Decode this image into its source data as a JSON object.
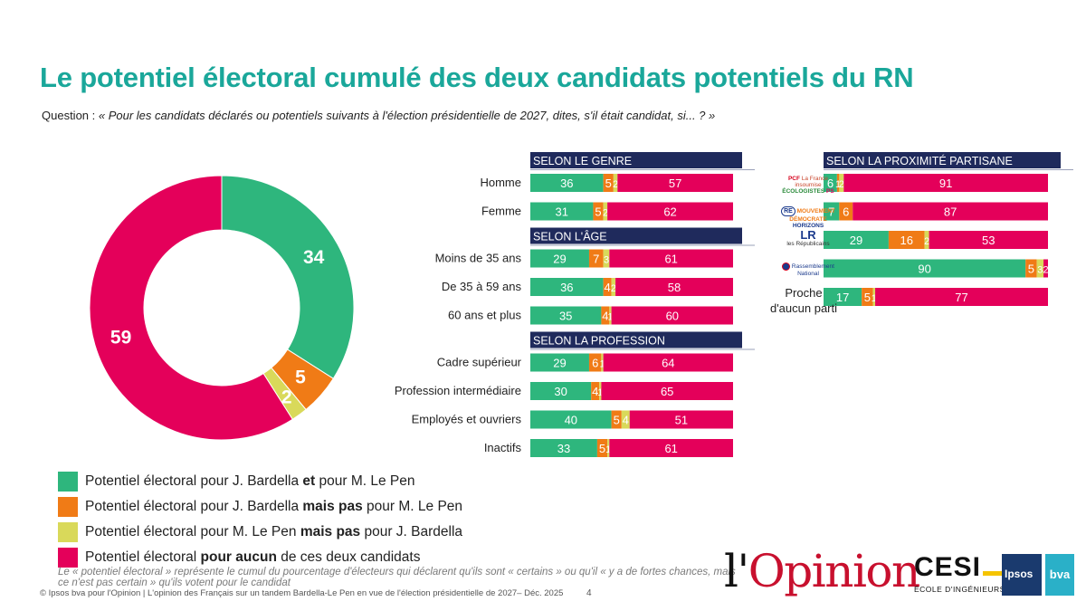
{
  "title": "Le potentiel électoral cumulé des deux candidats potentiels du RN",
  "question": {
    "prefix": "Question : ",
    "text": "« Pour les candidats déclarés ou potentiels suivants à l'élection présidentielle de 2027, dites, s'il était candidat, si... ? »"
  },
  "colors": {
    "green": "#2eb67d",
    "orange": "#f07b16",
    "yellow": "#d9d95a",
    "red": "#e4005a",
    "navy": "#1f2a5c",
    "teal": "#1aa79a"
  },
  "chart_data": [
    {
      "type": "pie",
      "title": "Ensemble",
      "categories": [
        "Potentiel électoral pour J. Bardella et pour M. Le Pen",
        "Potentiel électoral pour J. Bardella mais pas pour M. Le Pen",
        "Potentiel électoral pour M. Le Pen mais pas pour J. Bardella",
        "Potentiel électoral pour aucun de ces deux candidats"
      ],
      "values": [
        34,
        5,
        2,
        59
      ],
      "labels": [
        "34",
        "5",
        "2",
        "59"
      ]
    },
    {
      "type": "bar",
      "stacked": true,
      "orientation": "horizontal",
      "groups": [
        {
          "header": "SELON LE GENRE",
          "rows": [
            {
              "label": "Homme",
              "values": [
                36,
                5,
                2,
                57
              ],
              "labels": [
                "36",
                "5",
                "2",
                "57"
              ]
            },
            {
              "label": "Femme",
              "values": [
                31,
                5,
                2,
                62
              ],
              "labels": [
                "31",
                "5",
                "2",
                "62"
              ]
            }
          ]
        },
        {
          "header": "SELON L'ÂGE",
          "rows": [
            {
              "label": "Moins de 35 ans",
              "values": [
                29,
                7,
                3,
                61
              ],
              "labels": [
                "29",
                "7",
                "3",
                "61"
              ]
            },
            {
              "label": "De 35 à 59 ans",
              "values": [
                36,
                4,
                2,
                58
              ],
              "labels": [
                "36",
                "4",
                "2",
                "58"
              ]
            },
            {
              "label": "60 ans et plus",
              "values": [
                35,
                4,
                1,
                60
              ],
              "labels": [
                "35",
                "4",
                "1",
                "60"
              ]
            }
          ]
        },
        {
          "header": "SELON LA PROFESSION",
          "rows": [
            {
              "label": "Cadre supérieur",
              "values": [
                29,
                6,
                1,
                64
              ],
              "labels": [
                "29",
                "6",
                "1",
                "64"
              ]
            },
            {
              "label": "Profession intermédiaire",
              "values": [
                30,
                4,
                1,
                65
              ],
              "labels": [
                "30",
                "4",
                "1",
                "65"
              ]
            },
            {
              "label": "Employés et ouvriers",
              "values": [
                40,
                5,
                4,
                51
              ],
              "labels": [
                "40",
                "5",
                "4",
                "51"
              ]
            },
            {
              "label": "Inactifs",
              "values": [
                33,
                5,
                1,
                61
              ],
              "labels": [
                "33",
                "5",
                "1",
                "61"
              ]
            }
          ]
        }
      ]
    },
    {
      "type": "bar",
      "stacked": true,
      "orientation": "horizontal",
      "groups": [
        {
          "header": "SELON LA PROXIMITÉ PARTISANE",
          "rows": [
            {
              "label": "Gauche (PCF, LFI, Écologistes, PS)",
              "values": [
                6,
                1,
                2,
                91
              ],
              "labels": [
                "6",
                "1",
                "2",
                "91"
              ]
            },
            {
              "label": "Renaissance, MoDem, Horizons",
              "values": [
                7,
                6,
                0,
                87
              ],
              "labels": [
                "7",
                "6",
                "",
                "87"
              ]
            },
            {
              "label": "Les Républicains",
              "values": [
                29,
                16,
                2,
                53
              ],
              "labels": [
                "29",
                "16",
                "2",
                "53"
              ]
            },
            {
              "label": "Rassemblement National",
              "values": [
                90,
                5,
                3,
                2
              ],
              "labels": [
                "90",
                "5",
                "3",
                "2"
              ]
            },
            {
              "label": "Proche d'aucun parti",
              "values": [
                17,
                5,
                1,
                77
              ],
              "labels": [
                "17",
                "5",
                "1",
                "77"
              ]
            }
          ]
        }
      ]
    }
  ],
  "legend": [
    {
      "pre": "Potentiel électoral pour J. Bardella ",
      "bold": "et",
      "post": " pour M. Le Pen"
    },
    {
      "pre": "Potentiel électoral pour J. Bardella ",
      "bold": "mais pas",
      "post": " pour M. Le Pen"
    },
    {
      "pre": "Potentiel électoral pour M. Le Pen ",
      "bold": "mais pas",
      "post": " pour J. Bardella"
    },
    {
      "pre": "Potentiel électoral ",
      "bold": "pour aucun",
      "post": " de ces deux candidats"
    }
  ],
  "party_logos": {
    "gauche": [
      "PCF",
      "La France insoumise",
      "ÉCOLOGISTES",
      "PS"
    ],
    "centre": [
      "RE",
      "MOUVEMENT DÉMOCRATE",
      "HORIZONS"
    ],
    "lr": [
      "LR",
      "les Républicains"
    ],
    "rn": [
      "Rassemblement National"
    ]
  },
  "proche_label": "Proche d'aucun parti",
  "footnote": "Le « potentiel électoral » représente le cumul du pourcentage d'électeurs qui déclarent qu'ils sont « certains » ou qu'il « y a de fortes chances, mais ce n'est pas certain » qu'ils votent pour le candidat",
  "copyright": "© Ipsos bva pour l'Opinion | L'opinion des Français sur un tandem Bardella-Le Pen en vue de l'élection présidentielle de 2027– Déc. 2025",
  "page_number": "4",
  "logos": {
    "opinion_prefix": "l'",
    "opinion_main": "Opinion",
    "cesi": "CESI",
    "cesi_sub": "ÉCOLE D'INGÉNIEURS",
    "ipsos": "Ipsos",
    "bva": "bva"
  }
}
